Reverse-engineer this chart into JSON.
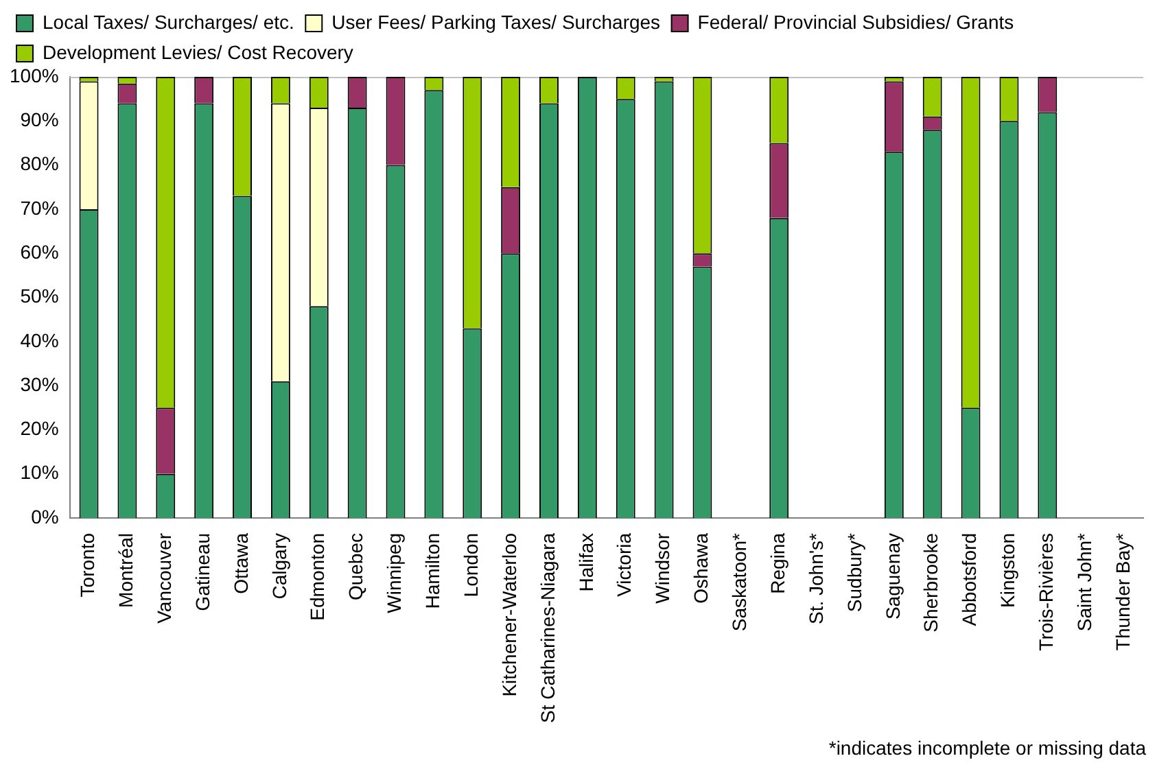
{
  "chart_data": {
    "type": "bar",
    "stacked": true,
    "legend": "top left",
    "grid": false,
    "categories": [
      "Toronto",
      "Montréal",
      "Vancouver",
      "Gatineau",
      "Ottawa",
      "Calgary",
      "Edmonton",
      "Quebec",
      "Winnipeg",
      "Hamilton",
      "London",
      "Kitchener-Waterloo",
      "St Catharines-Niagara",
      "Halifax",
      "Victoria",
      "Windsor",
      "Oshawa",
      "Saskatoon*",
      "Regina",
      "St. John's*",
      "Sudbury*",
      "Saguenay",
      "Sherbrooke",
      "Abbotsford",
      "Kingston",
      "Trois-Rivières",
      "Saint John*",
      "Thunder Bay*"
    ],
    "series": [
      {
        "name": "Local Taxes/ Surcharges/ etc.",
        "color": "#339966",
        "values": [
          70,
          94,
          10,
          94,
          73,
          31,
          48,
          93,
          80,
          97,
          43,
          60,
          94,
          100,
          95,
          99,
          57,
          null,
          68,
          null,
          null,
          83,
          88,
          25,
          90,
          92,
          null,
          null
        ]
      },
      {
        "name": "User Fees/ Parking Taxes/ Surcharges",
        "color": "#ffffcc",
        "values": [
          29,
          0,
          0,
          0,
          0,
          63,
          45,
          0,
          0,
          0,
          0,
          0,
          0,
          0,
          0,
          0,
          0,
          null,
          0,
          null,
          null,
          0,
          0,
          0,
          0,
          0,
          null,
          null
        ]
      },
      {
        "name": "Federal/ Provincial Subsidies/ Grants",
        "color": "#993366",
        "values": [
          0,
          4.5,
          15,
          6,
          0,
          0,
          0,
          7,
          20,
          0,
          0,
          15,
          0,
          0,
          0,
          0,
          3,
          null,
          17,
          null,
          null,
          16,
          3,
          0,
          0,
          8,
          null,
          null
        ]
      },
      {
        "name": "Development Levies/ Cost Recovery",
        "color": "#99cc00",
        "values": [
          1,
          1.5,
          75,
          0,
          27,
          6,
          7,
          0,
          0,
          3,
          57,
          25,
          6,
          0,
          5,
          1,
          40,
          null,
          15,
          null,
          null,
          1,
          9,
          75,
          10,
          0,
          null,
          null
        ]
      }
    ],
    "ylim": [
      0,
      100
    ],
    "yticks": [
      {
        "value": 0,
        "label": "0%"
      },
      {
        "value": 10,
        "label": "10%"
      },
      {
        "value": 20,
        "label": "20%"
      },
      {
        "value": 30,
        "label": "30%"
      },
      {
        "value": 40,
        "label": "40%"
      },
      {
        "value": 50,
        "label": "50%"
      },
      {
        "value": 60,
        "label": "60%"
      },
      {
        "value": 70,
        "label": "70%"
      },
      {
        "value": 80,
        "label": "80%"
      },
      {
        "value": 90,
        "label": "90%"
      },
      {
        "value": 100,
        "label": "100%"
      }
    ],
    "annotations": [
      "*indicates incomplete or missing data"
    ]
  }
}
